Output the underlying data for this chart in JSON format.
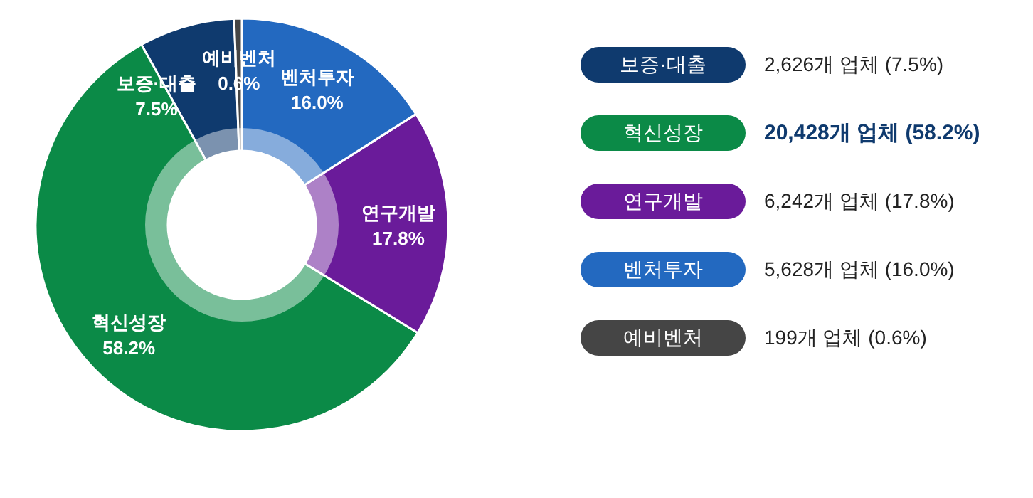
{
  "chart_data": {
    "type": "donut",
    "categories": [
      "보증·대출",
      "혁신성장",
      "연구개발",
      "벤처투자",
      "예비벤처"
    ],
    "values": [
      7.5,
      58.2,
      17.8,
      16.0,
      0.6
    ],
    "colors": [
      "#0f3a6e",
      "#0b8a47",
      "#6a1b9a",
      "#2369c0",
      "#454545"
    ],
    "value_labels": [
      "7.5%",
      "58.2%",
      "17.8%",
      "16.0%",
      "0.6%"
    ],
    "annotations": [
      "2,626개 업체 (7.5%)",
      "20,428개 업체 (58.2%)",
      "6,242개 업체 (17.8%)",
      "5,628개 업체 (16.0%)",
      "199개 업체 (0.6%)"
    ]
  }
}
